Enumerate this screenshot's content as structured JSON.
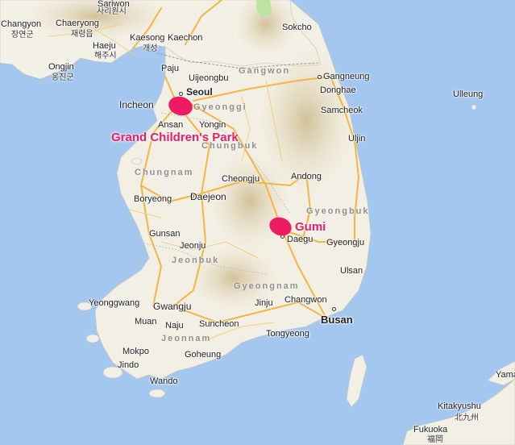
{
  "map": {
    "colors": {
      "sea": "#a4c7ef",
      "land": "#f2efe4",
      "mountain": "#d9c9a4",
      "road": "#f5b640",
      "marker": "#ee1a63"
    },
    "cities": {
      "changyon": "Changyon",
      "changyon_kor": "장연군",
      "chaeryong": "Chaeryong",
      "chaeryong_kor": "재령읍",
      "sariwon": "Sariwon",
      "sariwon_kor": "사리원시",
      "haeju": "Haeju",
      "haeju_kor": "해주시",
      "kaesong": "Kaesong",
      "kaesong_kor": "개성",
      "kaechon": "Kaechon",
      "ongjin": "Ongjin",
      "ongjin_kor": "옹진군",
      "paju": "Paju",
      "uijeongbu": "Uijeongbu",
      "seoul": "Seoul",
      "incheon": "Incheon",
      "ansan": "Ansan",
      "yongin": "Yongin",
      "sokcho": "Sokcho",
      "gangneung": "Gangneung",
      "donghae": "Donghae",
      "samcheok": "Samcheok",
      "ulleung": "Ulleung",
      "uljin": "Uljin",
      "cheongju": "Cheongju",
      "andong": "Andong",
      "boryeong": "Boryeong",
      "daejeon": "Daejeon",
      "daegu": "Daegu",
      "gyeongju": "Gyeongju",
      "gunsan": "Gunsan",
      "jeonju": "Jeonju",
      "ulsan": "Ulsan",
      "yeonggwang": "Yeonggwang",
      "gwangju": "Gwangju",
      "changwon": "Changwon",
      "muan": "Muan",
      "jinju": "Jinju",
      "busan": "Busan",
      "naju": "Naju",
      "suncheon": "Suncheon",
      "tongyeong": "Tongyeong",
      "mokpo": "Mokpo",
      "goheung": "Goheung",
      "jindo": "Jindo",
      "wando": "Wando",
      "kitakyushu": "Kitakyushu",
      "kitakyushu_kor": "北九州",
      "fukuoka": "Fukuoka",
      "fukuoka_kor": "福岡",
      "yama": "Yama"
    },
    "regions": {
      "gangwon": "Gangwon",
      "gyeonggi": "Gyeonggi",
      "chungbuk": "Chungbuk",
      "chungnam": "Chungnam",
      "gyeongbuk": "Gyeongbuk",
      "jeonbuk": "Jeonbuk",
      "gyeongnam": "Gyeongnam",
      "jeonnam": "Jeonnam"
    },
    "markers": {
      "park": "Grand Children's Park",
      "gumi": "Gumi"
    }
  }
}
